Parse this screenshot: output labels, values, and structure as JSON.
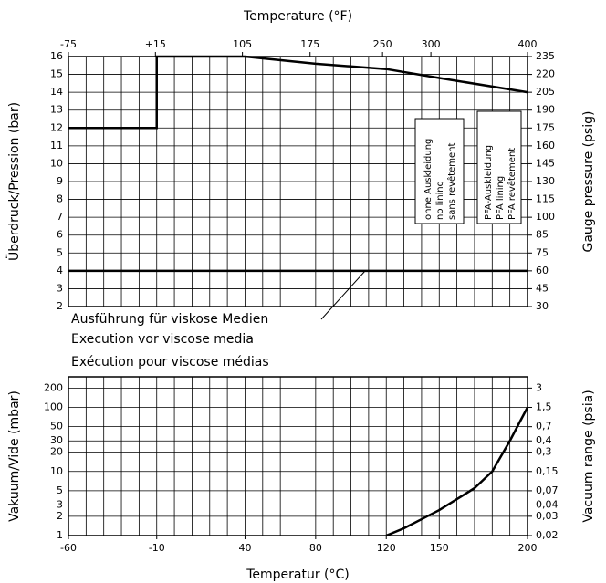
{
  "chart_data": [
    {
      "type": "line",
      "x2label": "Temperature (°F)",
      "ylabel": "Überdruck/Pression (bar)",
      "y2label": "Gauge pressure (psig)",
      "xlim": [
        -60,
        200
      ],
      "x2lim": [
        -75,
        400
      ],
      "x2ticks": [
        -75,
        {
          "value": 15,
          "label": "+15"
        },
        105,
        175,
        250,
        300,
        400
      ],
      "ylim": [
        2,
        16
      ],
      "yticks": [
        2,
        3,
        4,
        5,
        6,
        7,
        8,
        9,
        10,
        11,
        12,
        13,
        14,
        15,
        16
      ],
      "y2ticks": [
        30,
        45,
        60,
        75,
        85,
        100,
        115,
        130,
        145,
        160,
        175,
        190,
        205,
        220,
        235
      ],
      "grid": true,
      "series": [
        {
          "color": "#000000",
          "x": [
            -60,
            -10,
            -10,
            40,
            80,
            120,
            150,
            200
          ],
          "values": [
            12,
            12,
            16,
            16,
            15.6,
            15.3,
            14.8,
            14
          ]
        },
        {
          "color": "#000000",
          "x": [
            -60,
            200
          ],
          "values": [
            4,
            4
          ]
        }
      ],
      "notes": [
        "Ausführung für viskose Medien",
        "Execution vor viscose media",
        "Exécution pour viscose médias"
      ],
      "boxes": [
        [
          "ohne Auskleidung",
          "no lining",
          "sans revêtement"
        ],
        [
          "PFA-Auskleidung",
          "PFA lining",
          "PFA revêtement"
        ]
      ]
    },
    {
      "type": "line",
      "xlabel": "Temperatur (°C)",
      "ylabel": "Vakuum/Vide (mbar)",
      "y2label": "Vacuum range (psia)",
      "xlim": [
        -60,
        200
      ],
      "xticks": [
        -60,
        -10,
        40,
        80,
        120,
        150,
        200
      ],
      "ylim": [
        1,
        300
      ],
      "log_y": true,
      "yticks": [
        1,
        2,
        3,
        5,
        10,
        20,
        30,
        50,
        100,
        200
      ],
      "y2ticks": [
        {
          "value": 0.02,
          "label": "0,02"
        },
        {
          "value": 0.03,
          "label": "0,03"
        },
        {
          "value": 0.04,
          "label": "0,04"
        },
        {
          "value": 0.07,
          "label": "0,07"
        },
        {
          "value": 0.15,
          "label": "0,15"
        },
        {
          "value": 0.3,
          "label": "0,3"
        },
        {
          "value": 0.4,
          "label": "0,4"
        },
        {
          "value": 0.7,
          "label": "0,7"
        },
        {
          "value": 1.5,
          "label": "1,5"
        },
        3
      ],
      "grid": true,
      "series": [
        {
          "color": "#000000",
          "x": [
            120,
            130,
            140,
            150,
            160,
            170,
            180,
            190,
            195,
            200
          ],
          "values": [
            1,
            1.3,
            1.8,
            2.5,
            3.7,
            5.5,
            10,
            30,
            55,
            100
          ]
        }
      ]
    }
  ]
}
